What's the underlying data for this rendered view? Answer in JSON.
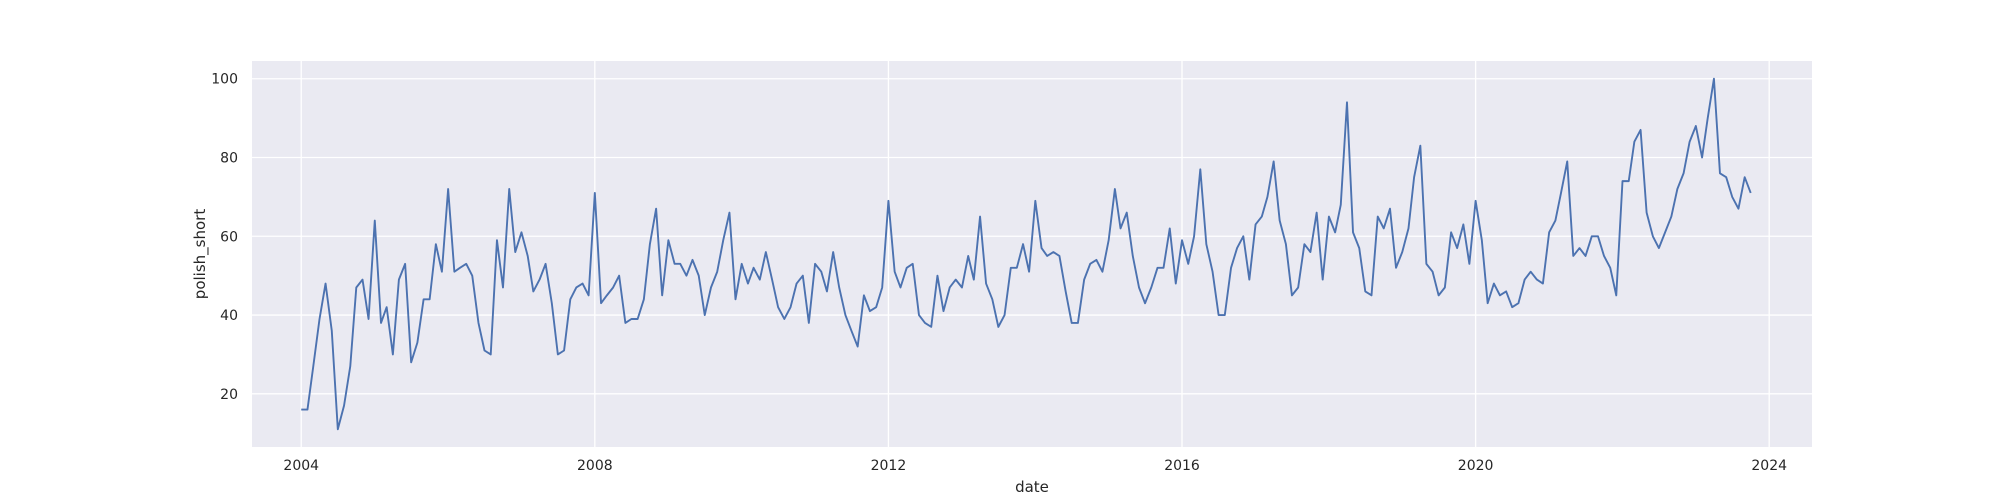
{
  "chart_data": {
    "type": "line",
    "title": "",
    "xlabel": "date",
    "ylabel": "polish_short",
    "xlim": [
      "2003-05-01",
      "2024-08-01"
    ],
    "ylim": [
      6.5,
      104.5
    ],
    "x_ticks": [
      "2004",
      "2008",
      "2012",
      "2016",
      "2020",
      "2024"
    ],
    "y_ticks": [
      "20",
      "40",
      "60",
      "80",
      "100"
    ],
    "grid": true,
    "background_color": "#eaeaf2",
    "grid_color": "#ffffff",
    "line_color": "#4c72b0",
    "series": [
      {
        "x": [
          "2004-01",
          "2004-02",
          "2004-03",
          "2004-04",
          "2004-05",
          "2004-06",
          "2004-07",
          "2004-08",
          "2004-09",
          "2004-10",
          "2004-11",
          "2004-12",
          "2005-01",
          "2005-02",
          "2005-03",
          "2005-04",
          "2005-05",
          "2005-06",
          "2005-07",
          "2005-08",
          "2005-09",
          "2005-10",
          "2005-11",
          "2005-12",
          "2006-01",
          "2006-02",
          "2006-03",
          "2006-04",
          "2006-05",
          "2006-06",
          "2006-07",
          "2006-08",
          "2006-09",
          "2006-10",
          "2006-11",
          "2006-12",
          "2007-01",
          "2007-02",
          "2007-03",
          "2007-04",
          "2007-05",
          "2007-06",
          "2007-07",
          "2007-08",
          "2007-09",
          "2007-10",
          "2007-11",
          "2007-12",
          "2008-01",
          "2008-02",
          "2008-03",
          "2008-04",
          "2008-05",
          "2008-06",
          "2008-07",
          "2008-08",
          "2008-09",
          "2008-10",
          "2008-11",
          "2008-12",
          "2009-01",
          "2009-02",
          "2009-03",
          "2009-04",
          "2009-05",
          "2009-06",
          "2009-07",
          "2009-08",
          "2009-09",
          "2009-10",
          "2009-11",
          "2009-12",
          "2010-01",
          "2010-02",
          "2010-03",
          "2010-04",
          "2010-05",
          "2010-06",
          "2010-07",
          "2010-08",
          "2010-09",
          "2010-10",
          "2010-11",
          "2010-12",
          "2011-01",
          "2011-02",
          "2011-03",
          "2011-04",
          "2011-05",
          "2011-06",
          "2011-07",
          "2011-08",
          "2011-09",
          "2011-10",
          "2011-11",
          "2011-12",
          "2012-01",
          "2012-02",
          "2012-03",
          "2012-04",
          "2012-05",
          "2012-06",
          "2012-07",
          "2012-08",
          "2012-09",
          "2012-10",
          "2012-11",
          "2012-12",
          "2013-01",
          "2013-02",
          "2013-03",
          "2013-04",
          "2013-05",
          "2013-06",
          "2013-07",
          "2013-08",
          "2013-09",
          "2013-10",
          "2013-11",
          "2013-12",
          "2014-01",
          "2014-02",
          "2014-03",
          "2014-04",
          "2014-05",
          "2014-06",
          "2014-07",
          "2014-08",
          "2014-09",
          "2014-10",
          "2014-11",
          "2014-12",
          "2015-01",
          "2015-02",
          "2015-03",
          "2015-04",
          "2015-05",
          "2015-06",
          "2015-07",
          "2015-08",
          "2015-09",
          "2015-10",
          "2015-11",
          "2015-12",
          "2016-01",
          "2016-02",
          "2016-03",
          "2016-04",
          "2016-05",
          "2016-06",
          "2016-07",
          "2016-08",
          "2016-09",
          "2016-10",
          "2016-11",
          "2016-12",
          "2017-01",
          "2017-02",
          "2017-03",
          "2017-04",
          "2017-05",
          "2017-06",
          "2017-07",
          "2017-08",
          "2017-09",
          "2017-10",
          "2017-11",
          "2017-12",
          "2018-01",
          "2018-02",
          "2018-03",
          "2018-04",
          "2018-05",
          "2018-06",
          "2018-07",
          "2018-08",
          "2018-09",
          "2018-10",
          "2018-11",
          "2018-12",
          "2019-01",
          "2019-02",
          "2019-03",
          "2019-04",
          "2019-05",
          "2019-06",
          "2019-07",
          "2019-08",
          "2019-09",
          "2019-10",
          "2019-11",
          "2019-12",
          "2020-01",
          "2020-02",
          "2020-03",
          "2020-04",
          "2020-05",
          "2020-06",
          "2020-07",
          "2020-08",
          "2020-09",
          "2020-10",
          "2020-11",
          "2020-12",
          "2021-01",
          "2021-02",
          "2021-03",
          "2021-04",
          "2021-05",
          "2021-06",
          "2021-07",
          "2021-08",
          "2021-09",
          "2021-10",
          "2021-11",
          "2021-12",
          "2022-01",
          "2022-02",
          "2022-03",
          "2022-04",
          "2022-05",
          "2022-06",
          "2022-07",
          "2022-08",
          "2022-09",
          "2022-10",
          "2022-11",
          "2022-12",
          "2023-01",
          "2023-02",
          "2023-03",
          "2023-04",
          "2023-05",
          "2023-06",
          "2023-07",
          "2023-08",
          "2023-09",
          "2023-10"
        ],
        "values": [
          16,
          16,
          27,
          39,
          48,
          36,
          11,
          17,
          27,
          47,
          49,
          39,
          64,
          38,
          42,
          30,
          49,
          53,
          28,
          33,
          44,
          44,
          58,
          51,
          72,
          51,
          52,
          53,
          50,
          38,
          31,
          30,
          59,
          47,
          72,
          56,
          61,
          55,
          46,
          49,
          53,
          43,
          30,
          31,
          44,
          47,
          48,
          45,
          71,
          43,
          45,
          47,
          50,
          38,
          39,
          39,
          44,
          58,
          67,
          45,
          59,
          53,
          53,
          50,
          54,
          50,
          40,
          47,
          51,
          59,
          66,
          44,
          53,
          48,
          52,
          49,
          56,
          49,
          42,
          39,
          42,
          48,
          50,
          38,
          53,
          51,
          46,
          56,
          47,
          40,
          36,
          32,
          45,
          41,
          42,
          47,
          69,
          51,
          47,
          52,
          53,
          40,
          38,
          37,
          50,
          41,
          47,
          49,
          47,
          55,
          49,
          65,
          48,
          44,
          37,
          40,
          52,
          52,
          58,
          51,
          69,
          57,
          55,
          56,
          55,
          46,
          38,
          38,
          49,
          53,
          54,
          51,
          59,
          72,
          62,
          66,
          55,
          47,
          43,
          47,
          52,
          52,
          62,
          48,
          59,
          53,
          60,
          77,
          58,
          51,
          40,
          40,
          52,
          57,
          60,
          49,
          63,
          65,
          70,
          79,
          64,
          58,
          45,
          47,
          58,
          56,
          66,
          49,
          65,
          61,
          68,
          94,
          61,
          57,
          46,
          45,
          65,
          62,
          67,
          52,
          56,
          62,
          75,
          83,
          53,
          51,
          45,
          47,
          61,
          57,
          63,
          53,
          69,
          59,
          43,
          48,
          45,
          46,
          42,
          43,
          49,
          51,
          49,
          48,
          61,
          64,
          71,
          79,
          55,
          57,
          55,
          60,
          60,
          55,
          52,
          45,
          74,
          74,
          84,
          87,
          66,
          60,
          57,
          61,
          65,
          72,
          76,
          84,
          88,
          80,
          90,
          100,
          76,
          75,
          70,
          67,
          75,
          71
        ]
      }
    ]
  }
}
